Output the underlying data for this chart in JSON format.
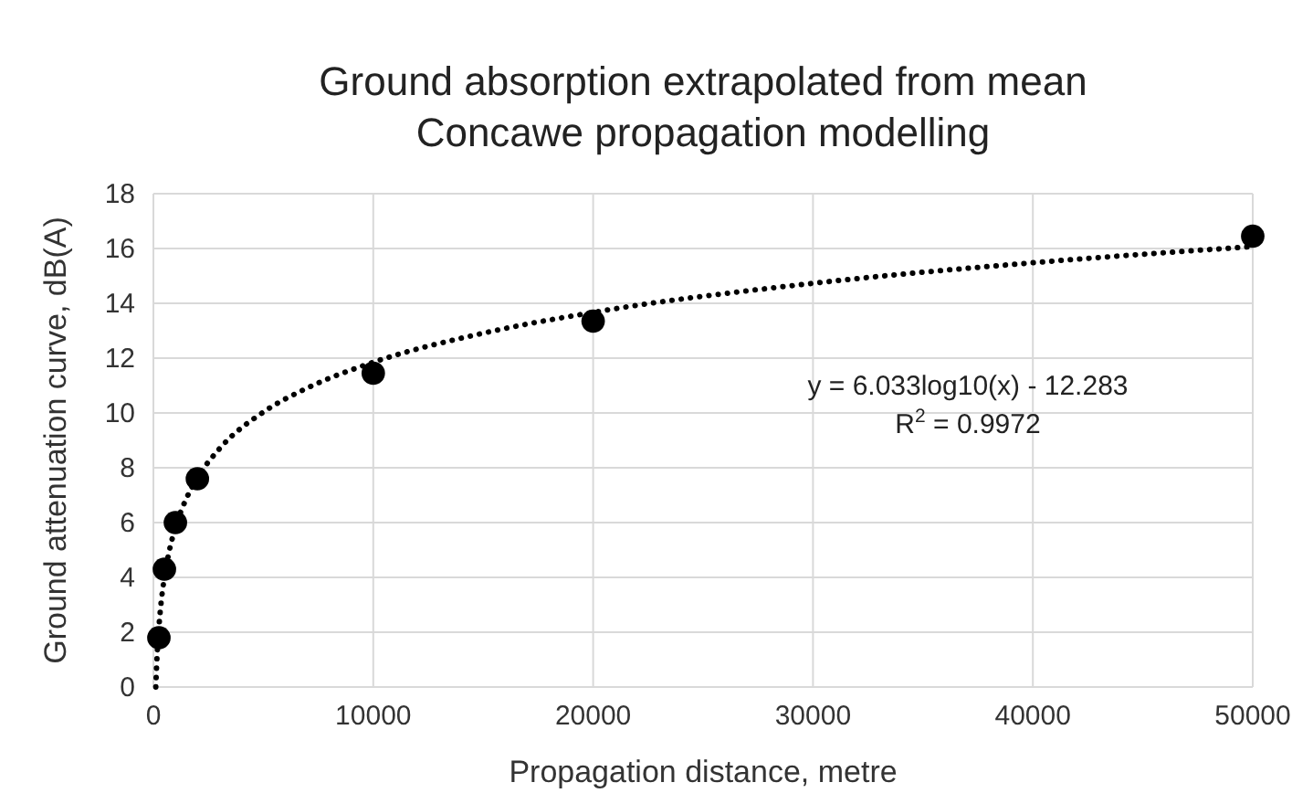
{
  "chart_data": {
    "type": "scatter",
    "title": "Ground absorption extrapolated from mean Concawe propagation modelling",
    "xlabel": "Propagation distance, metre",
    "ylabel": "Ground attenuation curve, dB(A)",
    "annotations": [
      "y = 6.033log10(x) - 12.283",
      "R$^{2}$ = 0.9972"
    ],
    "xlim": [
      0,
      50000
    ],
    "xticks": [
      0,
      10000,
      20000,
      30000,
      40000,
      50000
    ],
    "ylim": [
      0,
      18
    ],
    "yticks": [
      0,
      2,
      4,
      6,
      8,
      10,
      12,
      14,
      16,
      18
    ],
    "grid": true,
    "series": [
      {
        "type": "line",
        "color": "#000000",
        "line_style": "dotted",
        "marker": "none",
        "x": [
          109,
          150,
          200,
          300,
          500,
          700,
          1000,
          1500,
          2000,
          3000,
          5000,
          7000,
          10000,
          15000,
          20000,
          30000,
          40000,
          50000
        ],
        "values": [
          0.0,
          0.85,
          1.6,
          2.66,
          4.0,
          4.88,
          5.82,
          6.88,
          7.63,
          8.69,
          10.03,
          10.91,
          11.85,
          12.91,
          13.67,
          14.73,
          15.48,
          16.07
        ]
      },
      {
        "color": "#000000",
        "marker": "circle",
        "x": [
          250,
          500,
          1000,
          2000,
          10000,
          20000,
          50000
        ],
        "values": [
          1.8,
          4.3,
          6.0,
          7.6,
          11.45,
          13.35,
          16.45
        ]
      }
    ]
  }
}
